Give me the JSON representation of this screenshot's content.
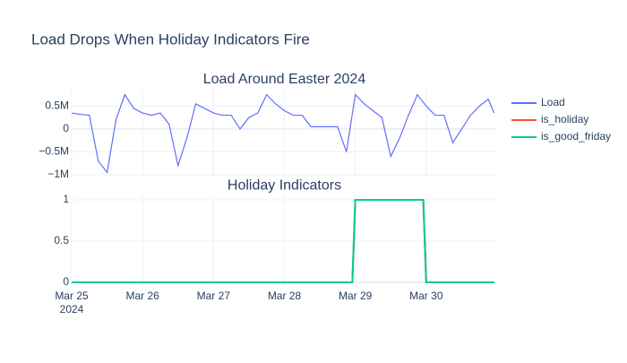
{
  "title": "Load Drops When Holiday Indicators Fire",
  "chart_data": [
    {
      "type": "line",
      "title": "Load Around Easter 2024",
      "x": [
        "2024-03-25T00:00",
        "2024-03-25T03:00",
        "2024-03-25T06:00",
        "2024-03-25T09:00",
        "2024-03-25T12:00",
        "2024-03-25T15:00",
        "2024-03-25T18:00",
        "2024-03-25T21:00",
        "2024-03-26T00:00",
        "2024-03-26T03:00",
        "2024-03-26T06:00",
        "2024-03-26T09:00",
        "2024-03-26T12:00",
        "2024-03-26T15:00",
        "2024-03-26T18:00",
        "2024-03-26T21:00",
        "2024-03-27T00:00",
        "2024-03-27T03:00",
        "2024-03-27T06:00",
        "2024-03-27T09:00",
        "2024-03-27T12:00",
        "2024-03-27T15:00",
        "2024-03-27T18:00",
        "2024-03-27T21:00",
        "2024-03-28T00:00",
        "2024-03-28T03:00",
        "2024-03-28T06:00",
        "2024-03-28T09:00",
        "2024-03-28T12:00",
        "2024-03-28T15:00",
        "2024-03-28T18:00",
        "2024-03-28T21:00",
        "2024-03-29T00:00",
        "2024-03-29T03:00",
        "2024-03-29T06:00",
        "2024-03-29T09:00",
        "2024-03-29T12:00",
        "2024-03-29T15:00",
        "2024-03-29T18:00",
        "2024-03-29T21:00",
        "2024-03-30T00:00",
        "2024-03-30T03:00",
        "2024-03-30T06:00",
        "2024-03-30T09:00",
        "2024-03-30T12:00",
        "2024-03-30T15:00",
        "2024-03-30T18:00",
        "2024-03-30T21:00",
        "2024-03-30T23:00"
      ],
      "series": [
        {
          "name": "Load",
          "color": "#636efa",
          "values": [
            350000,
            320000,
            300000,
            -700000,
            -950000,
            200000,
            750000,
            450000,
            350000,
            300000,
            350000,
            100000,
            -800000,
            -200000,
            550000,
            450000,
            350000,
            300000,
            300000,
            0,
            250000,
            350000,
            750000,
            550000,
            400000,
            300000,
            300000,
            50000,
            50000,
            50000,
            50000,
            -500000,
            750000,
            550000,
            400000,
            250000,
            -600000,
            -200000,
            300000,
            750000,
            500000,
            300000,
            300000,
            -300000,
            0,
            300000,
            500000,
            650000,
            350000
          ]
        }
      ],
      "xlim": [
        "2024-03-25T00:00",
        "2024-03-31T00:00"
      ],
      "ylim": [
        -1060000,
        860000
      ],
      "yticks": [
        {
          "value": 500000,
          "label": "0.5M"
        },
        0,
        {
          "value": -500000,
          "label": "−0.5M"
        },
        {
          "value": -1000000,
          "label": "−1M"
        }
      ],
      "grid": true
    },
    {
      "type": "line",
      "title": "Holiday Indicators",
      "x": [
        "2024-03-25T00:00",
        "2024-03-28T23:00",
        "2024-03-29T00:00",
        "2024-03-29T23:00",
        "2024-03-30T00:00",
        "2024-03-30T23:00"
      ],
      "series": [
        {
          "name": "is_holiday",
          "color": "#EF553B",
          "values": [
            0,
            0,
            1,
            1,
            0,
            0
          ]
        },
        {
          "name": "is_good_friday",
          "color": "#00cc96",
          "values": [
            0,
            0,
            1,
            1,
            0,
            0
          ]
        }
      ],
      "xlim": [
        "2024-03-25T00:00",
        "2024-03-31T00:00"
      ],
      "xticks": [
        {
          "value": "2024-03-25T00:00",
          "label": "Mar 25"
        },
        {
          "value": "2024-03-26T00:00",
          "label": "Mar 26"
        },
        {
          "value": "2024-03-27T00:00",
          "label": "Mar 27"
        },
        {
          "value": "2024-03-28T00:00",
          "label": "Mar 28"
        },
        {
          "value": "2024-03-29T00:00",
          "label": "Mar 29"
        },
        {
          "value": "2024-03-30T00:00",
          "label": "Mar 30"
        }
      ],
      "xtick_year": "2024",
      "ylim": [
        -0.05,
        1.05
      ],
      "yticks": [
        1,
        0.5,
        0
      ],
      "grid": true
    }
  ]
}
